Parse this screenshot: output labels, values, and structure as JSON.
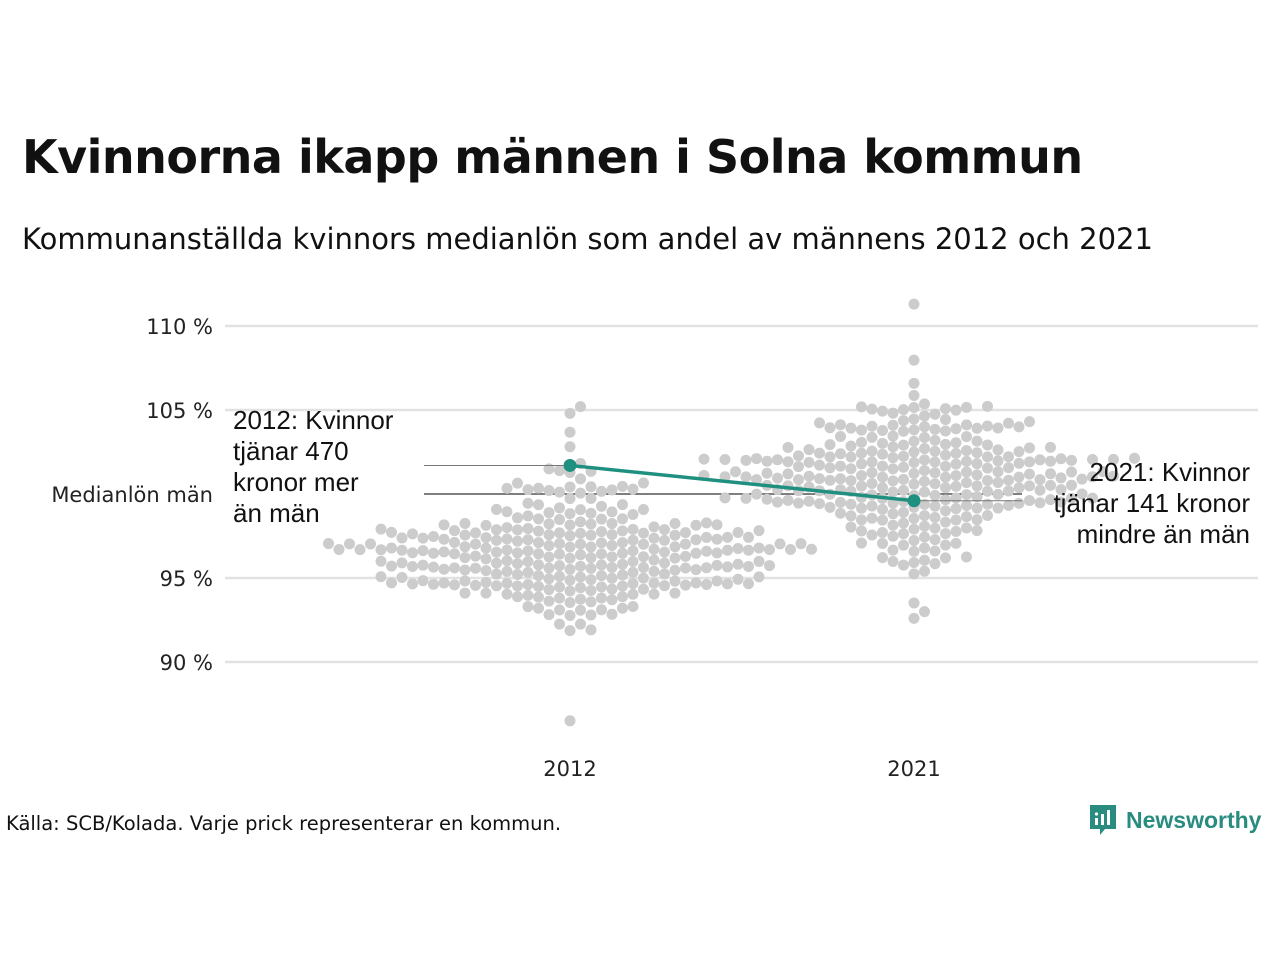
{
  "title": "Kvinnorna ikapp männen i Solna kommun",
  "subtitle": "Kommunanställda kvinnors medianlön som andel av männens 2012 och 2021",
  "source": "Källa: SCB/Kolada. Varje prick representerar en kommun.",
  "brand": {
    "name": "Newsworthy",
    "icon": "newsworthy-logo-icon",
    "color": "#2a8c80"
  },
  "chart_data": {
    "type": "scatter",
    "x": [
      "2012",
      "2021"
    ],
    "y_ticks": [
      {
        "value": 90,
        "label": "90 %"
      },
      {
        "value": 95,
        "label": "95 %"
      },
      {
        "value": 100,
        "label": "Medianlön män"
      },
      {
        "value": 105,
        "label": "105 %"
      },
      {
        "value": 110,
        "label": "110 %"
      }
    ],
    "ylim": [
      86,
      111
    ],
    "reference_line": {
      "value": 100,
      "label": "Medianlön män"
    },
    "beeswarm": [
      {
        "category": "2012",
        "min": 86.5,
        "max": 105.2,
        "median": 96.4,
        "color": "#cccccc"
      },
      {
        "category": "2021",
        "min": 92.6,
        "max": 111.3,
        "median": 101.2,
        "color": "#cccccc"
      }
    ],
    "highlight": {
      "name": "Solna",
      "color": "#1f9080",
      "values": [
        {
          "x": "2012",
          "y": 101.7
        },
        {
          "x": "2021",
          "y": 99.6
        }
      ]
    },
    "annotations": [
      {
        "x": "2012",
        "lines": [
          "2012: Kvinnor",
          "tjänar 470",
          "kronor mer",
          "än män"
        ]
      },
      {
        "x": "2021",
        "lines": [
          "2021: Kvinnor",
          "tjänar 141 kronor",
          "mindre än män"
        ]
      }
    ],
    "grid": true
  }
}
